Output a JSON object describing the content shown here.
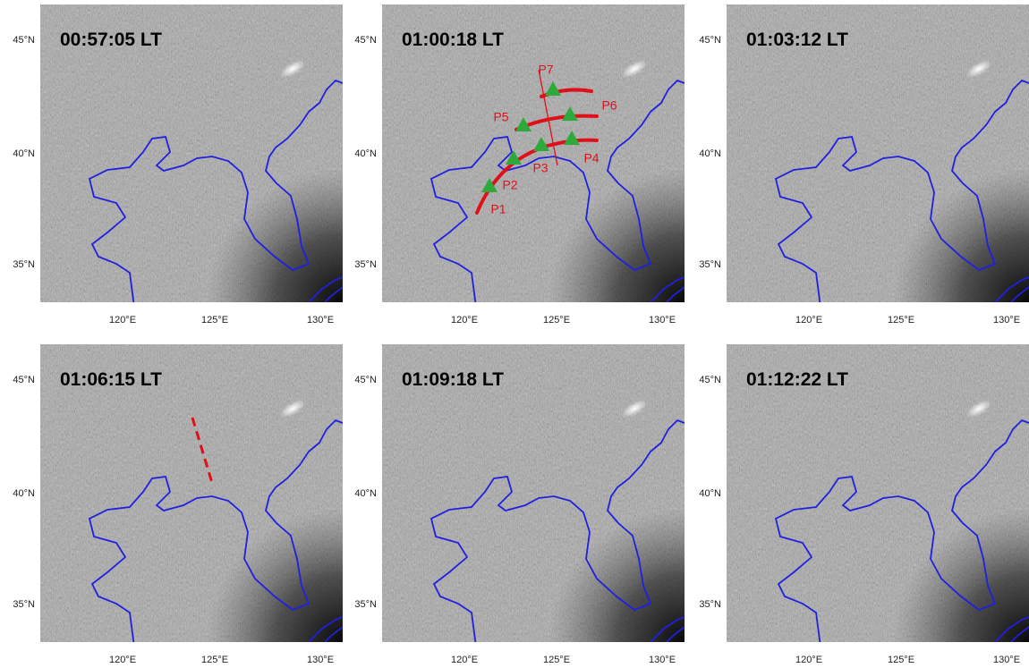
{
  "panels": [
    {
      "time": "00:57:05 LT"
    },
    {
      "time": "01:00:18 LT"
    },
    {
      "time": "01:03:12 LT"
    },
    {
      "time": "01:06:15 LT"
    },
    {
      "time": "01:09:18 LT"
    },
    {
      "time": "01:12:22 LT"
    }
  ],
  "lat_labels": [
    "45°N",
    "40°N",
    "35°N"
  ],
  "lon_labels": [
    "120°E",
    "125°E",
    "130°E"
  ],
  "points": [
    "P1",
    "P2",
    "P3",
    "P4",
    "P5",
    "P6",
    "P7"
  ]
}
